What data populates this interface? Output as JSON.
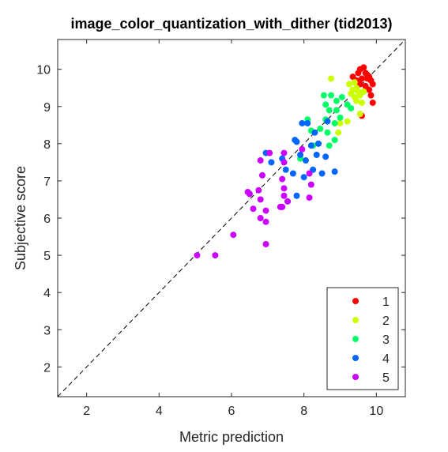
{
  "chart_data": {
    "type": "scatter",
    "title": "image_color_quantization_with_dither (tid2013)",
    "xlabel": "Metric prediction",
    "ylabel": "Subjective score",
    "xlim": [
      1.2,
      10.8
    ],
    "ylim": [
      1.2,
      10.8
    ],
    "xticks": [
      2,
      4,
      6,
      8,
      10
    ],
    "yticks": [
      2,
      3,
      4,
      5,
      6,
      7,
      8,
      9,
      10
    ],
    "grid": false,
    "reference_line": "identity",
    "legend_position": "bottom-right",
    "series": [
      {
        "name": "1",
        "color": "#ff0000",
        "points": [
          [
            9.35,
            9.8
          ],
          [
            9.5,
            9.9
          ],
          [
            9.55,
            10.0
          ],
          [
            9.65,
            10.05
          ],
          [
            9.7,
            9.9
          ],
          [
            9.75,
            9.75
          ],
          [
            9.8,
            9.8
          ],
          [
            9.85,
            9.7
          ],
          [
            9.9,
            9.6
          ],
          [
            9.6,
            9.75
          ],
          [
            9.45,
            9.7
          ],
          [
            9.7,
            9.55
          ],
          [
            9.8,
            9.45
          ],
          [
            9.85,
            9.3
          ],
          [
            9.9,
            9.1
          ],
          [
            9.6,
            8.75
          ],
          [
            9.75,
            9.85
          ],
          [
            9.55,
            9.6
          ]
        ]
      },
      {
        "name": "2",
        "color": "#ccff00",
        "points": [
          [
            8.75,
            9.75
          ],
          [
            9.25,
            9.6
          ],
          [
            9.4,
            9.65
          ],
          [
            9.45,
            9.5
          ],
          [
            9.5,
            9.4
          ],
          [
            9.55,
            9.3
          ],
          [
            9.4,
            9.25
          ],
          [
            9.45,
            9.15
          ],
          [
            9.6,
            9.1
          ],
          [
            9.3,
            9.35
          ],
          [
            9.55,
            8.8
          ],
          [
            9.2,
            8.6
          ],
          [
            9.0,
            8.55
          ],
          [
            8.95,
            8.3
          ],
          [
            9.65,
            9.4
          ],
          [
            9.35,
            9.45
          ]
        ]
      },
      {
        "name": "3",
        "color": "#00ff66",
        "points": [
          [
            8.55,
            9.3
          ],
          [
            8.75,
            9.3
          ],
          [
            8.6,
            9.05
          ],
          [
            8.9,
            9.15
          ],
          [
            9.05,
            9.25
          ],
          [
            9.2,
            9.05
          ],
          [
            8.7,
            8.9
          ],
          [
            8.9,
            8.9
          ],
          [
            9.0,
            8.7
          ],
          [
            8.6,
            8.65
          ],
          [
            8.85,
            8.55
          ],
          [
            8.45,
            8.4
          ],
          [
            8.65,
            8.3
          ],
          [
            8.2,
            8.35
          ],
          [
            8.85,
            8.1
          ],
          [
            8.7,
            7.95
          ],
          [
            8.4,
            8.0
          ],
          [
            8.1,
            8.65
          ],
          [
            9.3,
            8.95
          ],
          [
            8.25,
            7.95
          ],
          [
            7.9,
            7.6
          ]
        ]
      },
      {
        "name": "4",
        "color": "#0066ff",
        "points": [
          [
            7.95,
            8.55
          ],
          [
            8.1,
            8.55
          ],
          [
            8.3,
            8.3
          ],
          [
            8.4,
            8.0
          ],
          [
            8.2,
            7.95
          ],
          [
            7.8,
            8.05
          ],
          [
            7.9,
            7.7
          ],
          [
            7.75,
            8.1
          ],
          [
            8.05,
            7.55
          ],
          [
            8.35,
            7.7
          ],
          [
            8.6,
            7.65
          ],
          [
            8.25,
            7.3
          ],
          [
            8.5,
            7.2
          ],
          [
            8.85,
            7.25
          ],
          [
            7.7,
            7.2
          ],
          [
            8.0,
            7.1
          ],
          [
            7.5,
            7.3
          ],
          [
            7.4,
            7.6
          ],
          [
            6.95,
            7.75
          ],
          [
            7.1,
            7.5
          ],
          [
            7.8,
            6.6
          ],
          [
            7.55,
            6.45
          ],
          [
            8.65,
            8.6
          ]
        ]
      },
      {
        "name": "5",
        "color": "#cc00ff",
        "points": [
          [
            7.05,
            7.75
          ],
          [
            7.45,
            7.75
          ],
          [
            7.45,
            7.5
          ],
          [
            6.8,
            7.55
          ],
          [
            6.85,
            7.15
          ],
          [
            7.4,
            7.05
          ],
          [
            8.15,
            7.2
          ],
          [
            8.2,
            6.9
          ],
          [
            8.15,
            6.55
          ],
          [
            7.45,
            6.8
          ],
          [
            7.45,
            6.6
          ],
          [
            6.5,
            6.65
          ],
          [
            6.45,
            6.7
          ],
          [
            6.8,
            6.5
          ],
          [
            7.55,
            6.45
          ],
          [
            7.4,
            6.3
          ],
          [
            7.35,
            6.3
          ],
          [
            6.6,
            6.25
          ],
          [
            6.95,
            6.2
          ],
          [
            6.8,
            6.0
          ],
          [
            6.95,
            5.9
          ],
          [
            6.95,
            5.3
          ],
          [
            6.05,
            5.55
          ],
          [
            5.55,
            5.0
          ],
          [
            5.05,
            5.0
          ],
          [
            7.95,
            7.85
          ],
          [
            6.75,
            6.75
          ]
        ]
      }
    ]
  }
}
